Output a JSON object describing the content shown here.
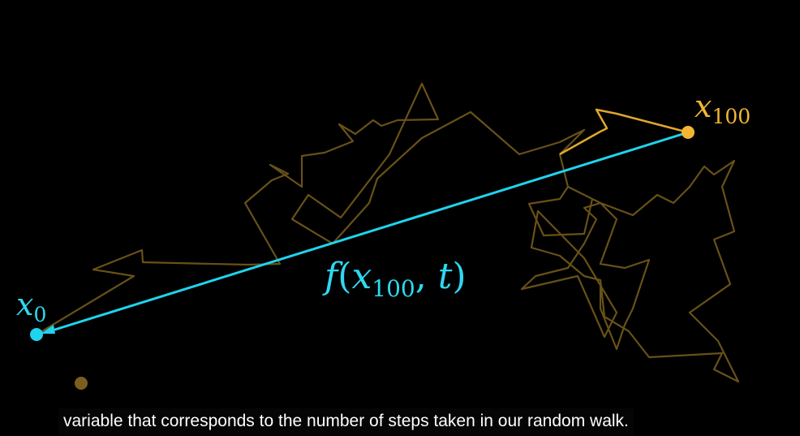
{
  "colors": {
    "background": "#000000",
    "walk_faint": "#7a5f1c",
    "walk_bright": "#e0a82a",
    "arrow": "#1fd4ee",
    "end_label": "#f2b633",
    "start_label": "#2fd8f0"
  },
  "labels": {
    "start": {
      "base": "x",
      "sub": "0"
    },
    "end": {
      "base": "x",
      "sub": "100"
    },
    "function": {
      "name": "f",
      "open": "(",
      "arg_base": "x",
      "arg_sub": "100",
      "sep": ", ",
      "var": "t",
      "close": ")"
    }
  },
  "caption": "variable that corresponds to the number of steps taken in our random walk."
}
